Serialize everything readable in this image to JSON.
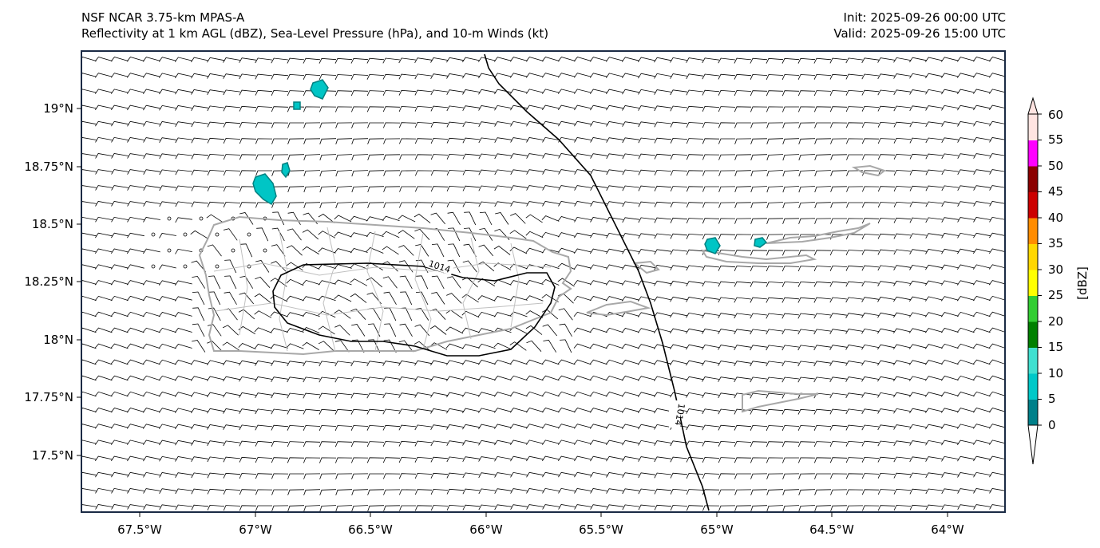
{
  "header": {
    "title_line1": "NSF NCAR 3.75-km MPAS-A",
    "title_line2": "Reflectivity at 1 km AGL (dBZ), Sea-Level Pressure (hPa), and 10-m Winds (kt)",
    "init": "Init: 2025-09-26 00:00 UTC",
    "valid": "Valid: 2025-09-26 15:00 UTC"
  },
  "map": {
    "lon_range": [
      -67.8,
      -63.8
    ],
    "lat_range": [
      17.25,
      19.25
    ],
    "lon_ticks": [
      {
        "value": -67.5,
        "label": "67.5°W"
      },
      {
        "value": -67.0,
        "label": "67°W"
      },
      {
        "value": -66.5,
        "label": "66.5°W"
      },
      {
        "value": -66.0,
        "label": "66°W"
      },
      {
        "value": -65.5,
        "label": "65.5°W"
      },
      {
        "value": -65.0,
        "label": "65°W"
      },
      {
        "value": -64.5,
        "label": "64.5°W"
      },
      {
        "value": -64.0,
        "label": "64°W"
      }
    ],
    "lat_ticks": [
      {
        "value": 19.0,
        "label": "19°N"
      },
      {
        "value": 18.75,
        "label": "18.75°N"
      },
      {
        "value": 18.5,
        "label": "18.5°N"
      },
      {
        "value": 18.25,
        "label": "18.25°N"
      },
      {
        "value": 18.0,
        "label": "18°N"
      },
      {
        "value": 17.75,
        "label": "17.75°N"
      },
      {
        "value": 17.5,
        "label": "17.5°N"
      }
    ],
    "isobars": [
      {
        "label": "1014",
        "type": "closed"
      },
      {
        "label": "1014",
        "type": "open"
      }
    ],
    "colors": {
      "coast": "#a8a8a8",
      "isobar": "#000000",
      "barb": "#000000",
      "echo": "#00c5c5",
      "echo_edge": "#008080"
    }
  },
  "colorbar": {
    "label": "[dBZ]",
    "ticks": [
      "0",
      "5",
      "10",
      "15",
      "20",
      "25",
      "30",
      "35",
      "40",
      "45",
      "50",
      "55",
      "60"
    ],
    "colors": [
      "#00808a",
      "#00c8c8",
      "#40e0d0",
      "#008000",
      "#32cd32",
      "#ffff00",
      "#ffd700",
      "#ff8c00",
      "#cc0000",
      "#8b0000",
      "#ff00ff",
      "#ffe4e1"
    ]
  }
}
